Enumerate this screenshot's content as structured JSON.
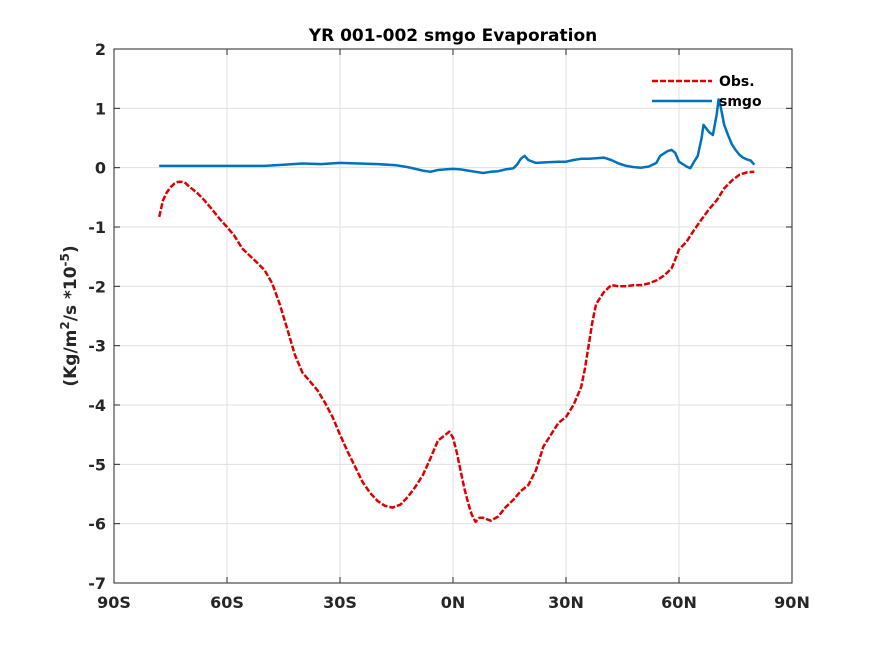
{
  "chart_data": {
    "type": "line",
    "title": "YR 001-002 smgo Evaporation",
    "ylabel": {
      "base": "(Kg/m",
      "exp1": "2",
      "mid": "/s *10",
      "exp2": "-5",
      "close": ")"
    },
    "xlabel": "",
    "xlim": [
      -90,
      90
    ],
    "ylim": [
      -7,
      2
    ],
    "x_ticks": [
      {
        "value": -90,
        "label": "90S"
      },
      {
        "value": -60,
        "label": "60S"
      },
      {
        "value": -30,
        "label": "30S"
      },
      {
        "value": 0,
        "label": "0N"
      },
      {
        "value": 30,
        "label": "30N"
      },
      {
        "value": 60,
        "label": "60N"
      },
      {
        "value": 90,
        "label": "90N"
      }
    ],
    "y_ticks": [
      {
        "value": 2,
        "label": "2"
      },
      {
        "value": 1,
        "label": "1"
      },
      {
        "value": 0,
        "label": "0"
      },
      {
        "value": -1,
        "label": "-1"
      },
      {
        "value": -2,
        "label": "-2"
      },
      {
        "value": -3,
        "label": "-3"
      },
      {
        "value": -4,
        "label": "-4"
      },
      {
        "value": -5,
        "label": "-5"
      },
      {
        "value": -6,
        "label": "-6"
      },
      {
        "value": -7,
        "label": "-7"
      }
    ],
    "grid": true,
    "legend_position": "top-right",
    "series": [
      {
        "name": "Obs.",
        "color": "#dd0000",
        "style": "dashed",
        "points": [
          [
            -78,
            -0.83
          ],
          [
            -77,
            -0.55
          ],
          [
            -76,
            -0.42
          ],
          [
            -75,
            -0.33
          ],
          [
            -74,
            -0.27
          ],
          [
            -73,
            -0.24
          ],
          [
            -72,
            -0.24
          ],
          [
            -71,
            -0.26
          ],
          [
            -70,
            -0.32
          ],
          [
            -68,
            -0.42
          ],
          [
            -66,
            -0.55
          ],
          [
            -64,
            -0.7
          ],
          [
            -62,
            -0.86
          ],
          [
            -60,
            -1.0
          ],
          [
            -58,
            -1.15
          ],
          [
            -56,
            -1.36
          ],
          [
            -54,
            -1.48
          ],
          [
            -52,
            -1.6
          ],
          [
            -50,
            -1.73
          ],
          [
            -48,
            -1.95
          ],
          [
            -46,
            -2.3
          ],
          [
            -44,
            -2.72
          ],
          [
            -42,
            -3.15
          ],
          [
            -40,
            -3.45
          ],
          [
            -38,
            -3.6
          ],
          [
            -36,
            -3.75
          ],
          [
            -34,
            -3.96
          ],
          [
            -32,
            -4.2
          ],
          [
            -30,
            -4.5
          ],
          [
            -28,
            -4.78
          ],
          [
            -26,
            -5.04
          ],
          [
            -24,
            -5.3
          ],
          [
            -22,
            -5.48
          ],
          [
            -20,
            -5.62
          ],
          [
            -18,
            -5.7
          ],
          [
            -16,
            -5.73
          ],
          [
            -14,
            -5.68
          ],
          [
            -12,
            -5.55
          ],
          [
            -10,
            -5.38
          ],
          [
            -8,
            -5.18
          ],
          [
            -6,
            -4.9
          ],
          [
            -4,
            -4.6
          ],
          [
            -2,
            -4.5
          ],
          [
            -1,
            -4.45
          ],
          [
            0,
            -4.55
          ],
          [
            1,
            -4.8
          ],
          [
            2,
            -5.1
          ],
          [
            3,
            -5.4
          ],
          [
            4,
            -5.65
          ],
          [
            5,
            -5.85
          ],
          [
            6,
            -5.97
          ],
          [
            7,
            -5.9
          ],
          [
            8,
            -5.9
          ],
          [
            10,
            -5.95
          ],
          [
            12,
            -5.88
          ],
          [
            14,
            -5.72
          ],
          [
            16,
            -5.6
          ],
          [
            18,
            -5.45
          ],
          [
            20,
            -5.35
          ],
          [
            22,
            -5.1
          ],
          [
            24,
            -4.7
          ],
          [
            26,
            -4.5
          ],
          [
            28,
            -4.3
          ],
          [
            30,
            -4.2
          ],
          [
            32,
            -4.0
          ],
          [
            34,
            -3.7
          ],
          [
            35,
            -3.4
          ],
          [
            36,
            -3.0
          ],
          [
            37,
            -2.6
          ],
          [
            38,
            -2.3
          ],
          [
            40,
            -2.1
          ],
          [
            42,
            -1.98
          ],
          [
            44,
            -2.0
          ],
          [
            46,
            -2.0
          ],
          [
            48,
            -1.98
          ],
          [
            50,
            -1.98
          ],
          [
            52,
            -1.95
          ],
          [
            54,
            -1.9
          ],
          [
            56,
            -1.82
          ],
          [
            58,
            -1.7
          ],
          [
            59,
            -1.55
          ],
          [
            60,
            -1.38
          ],
          [
            62,
            -1.25
          ],
          [
            64,
            -1.05
          ],
          [
            66,
            -0.87
          ],
          [
            68,
            -0.7
          ],
          [
            70,
            -0.55
          ],
          [
            72,
            -0.35
          ],
          [
            74,
            -0.22
          ],
          [
            76,
            -0.12
          ],
          [
            78,
            -0.08
          ],
          [
            80,
            -0.07
          ]
        ]
      },
      {
        "name": "smgo",
        "color": "#0072bd",
        "style": "solid",
        "points": [
          [
            -78,
            0.03
          ],
          [
            -70,
            0.03
          ],
          [
            -60,
            0.03
          ],
          [
            -50,
            0.03
          ],
          [
            -45,
            0.05
          ],
          [
            -40,
            0.07
          ],
          [
            -35,
            0.06
          ],
          [
            -30,
            0.08
          ],
          [
            -25,
            0.07
          ],
          [
            -20,
            0.06
          ],
          [
            -15,
            0.04
          ],
          [
            -12,
            0.01
          ],
          [
            -10,
            -0.02
          ],
          [
            -8,
            -0.05
          ],
          [
            -6,
            -0.07
          ],
          [
            -4,
            -0.04
          ],
          [
            -2,
            -0.03
          ],
          [
            0,
            -0.02
          ],
          [
            2,
            -0.03
          ],
          [
            4,
            -0.05
          ],
          [
            6,
            -0.07
          ],
          [
            8,
            -0.09
          ],
          [
            10,
            -0.07
          ],
          [
            12,
            -0.06
          ],
          [
            14,
            -0.03
          ],
          [
            16,
            -0.01
          ],
          [
            17,
            0.05
          ],
          [
            18,
            0.15
          ],
          [
            19,
            0.2
          ],
          [
            20,
            0.13
          ],
          [
            22,
            0.08
          ],
          [
            25,
            0.09
          ],
          [
            28,
            0.1
          ],
          [
            30,
            0.1
          ],
          [
            32,
            0.13
          ],
          [
            34,
            0.15
          ],
          [
            36,
            0.15
          ],
          [
            38,
            0.16
          ],
          [
            40,
            0.17
          ],
          [
            42,
            0.13
          ],
          [
            44,
            0.07
          ],
          [
            46,
            0.03
          ],
          [
            48,
            0.01
          ],
          [
            50,
            0.0
          ],
          [
            52,
            0.02
          ],
          [
            54,
            0.08
          ],
          [
            55,
            0.2
          ],
          [
            57,
            0.28
          ],
          [
            58,
            0.3
          ],
          [
            59,
            0.25
          ],
          [
            60,
            0.1
          ],
          [
            62,
            0.02
          ],
          [
            63,
            -0.01
          ],
          [
            64,
            0.1
          ],
          [
            65,
            0.2
          ],
          [
            66,
            0.5
          ],
          [
            66.5,
            0.72
          ],
          [
            67,
            0.68
          ],
          [
            68,
            0.6
          ],
          [
            69,
            0.55
          ],
          [
            70,
            0.9
          ],
          [
            70.5,
            1.15
          ],
          [
            71,
            1.05
          ],
          [
            72,
            0.72
          ],
          [
            73,
            0.55
          ],
          [
            74,
            0.4
          ],
          [
            75,
            0.3
          ],
          [
            76,
            0.22
          ],
          [
            77,
            0.17
          ],
          [
            78,
            0.14
          ],
          [
            79,
            0.12
          ],
          [
            80,
            0.05
          ]
        ]
      }
    ]
  }
}
